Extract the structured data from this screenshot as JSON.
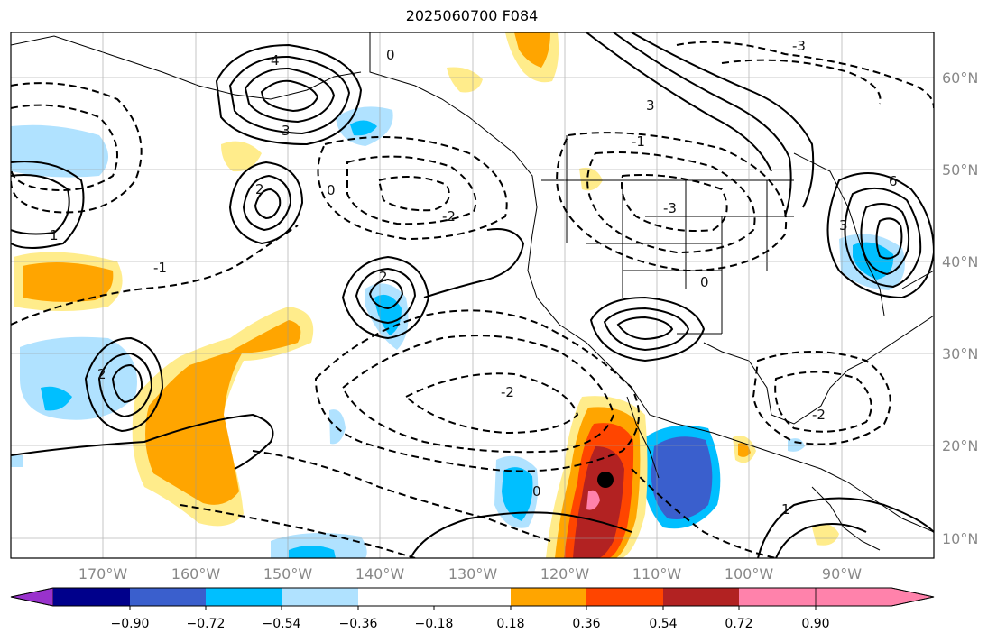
{
  "title": "2025060700 F084",
  "lat_labels": [
    "60°N",
    "50°N",
    "40°N",
    "30°N",
    "20°N",
    "10°N"
  ],
  "lon_labels": [
    "170°W",
    "160°W",
    "150°W",
    "140°W",
    "130°W",
    "120°W",
    "110°W",
    "100°W",
    "90°W"
  ],
  "colorbar": {
    "ticks": [
      "−0.90",
      "−0.72",
      "−0.54",
      "−0.36",
      "−0.18",
      "0.18",
      "0.36",
      "0.54",
      "0.72",
      "0.90"
    ],
    "colors": [
      "#9932cc",
      "#00008b",
      "#3a5fcd",
      "#00bfff",
      "#b0e2ff",
      "#ffffff",
      "#ffec8b",
      "#ffa500",
      "#ff4500",
      "#b22222",
      "#ff82ab"
    ]
  },
  "contour_labels": [
    "2",
    "4",
    "3",
    "-2",
    "0",
    "-1",
    "1",
    "-3",
    "6"
  ],
  "marker": "storm-center-dot"
}
